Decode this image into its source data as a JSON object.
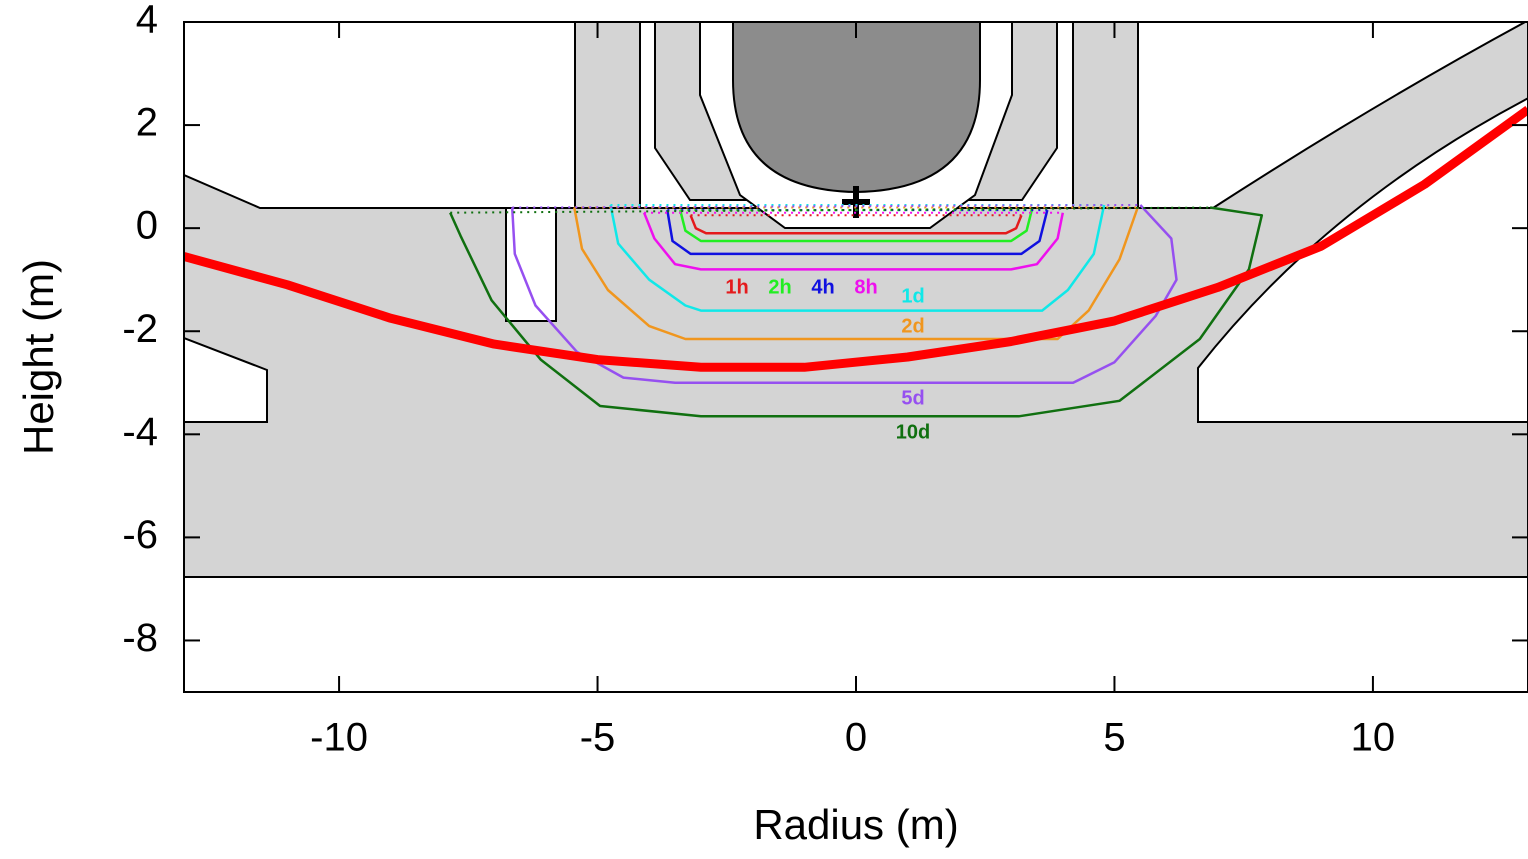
{
  "chart_data": {
    "type": "line",
    "xlabel": "Radius (m)",
    "ylabel": "Height (m)",
    "xlim": [
      -13,
      13
    ],
    "xticks": [
      -10,
      -5,
      0,
      5,
      10
    ],
    "ylim": [
      -9,
      4
    ],
    "yticks": [
      4,
      2,
      0,
      -2,
      -4,
      -6,
      -8
    ],
    "series": [
      {
        "name": "1h",
        "color": "#e41a1c",
        "x": [
          -3.2,
          -3.1,
          -2.9,
          2.9,
          3.1,
          3.2
        ],
        "values": [
          0.25,
          0.0,
          -0.1,
          -0.1,
          0.0,
          0.25
        ]
      },
      {
        "name": "2h",
        "color": "#22ee22",
        "x": [
          -3.4,
          -3.3,
          -3.0,
          3.0,
          3.3,
          3.4
        ],
        "values": [
          0.35,
          -0.05,
          -0.25,
          -0.25,
          -0.05,
          0.35
        ]
      },
      {
        "name": "4h",
        "color": "#1010e0",
        "x": [
          -3.65,
          -3.55,
          -3.2,
          3.2,
          3.55,
          3.7
        ],
        "values": [
          0.35,
          -0.25,
          -0.5,
          -0.5,
          -0.25,
          0.35
        ]
      },
      {
        "name": "8h",
        "color": "#ee10ee",
        "x": [
          -4.1,
          -3.9,
          -3.5,
          -3.0,
          3.0,
          3.5,
          3.9,
          4.0
        ],
        "values": [
          0.3,
          -0.2,
          -0.7,
          -0.8,
          -0.8,
          -0.7,
          -0.2,
          0.3
        ]
      },
      {
        "name": "1d",
        "color": "#10e8e8",
        "x": [
          -4.75,
          -4.6,
          -4.0,
          -3.3,
          -3.0,
          3.6,
          4.1,
          4.6,
          4.8
        ],
        "values": [
          0.45,
          -0.3,
          -1.0,
          -1.5,
          -1.6,
          -1.6,
          -1.2,
          -0.5,
          0.45
        ]
      },
      {
        "name": "2d",
        "color": "#f0961e",
        "x": [
          -5.45,
          -5.3,
          -4.8,
          -4.0,
          -3.3,
          3.9,
          4.5,
          5.1,
          5.45
        ],
        "values": [
          0.4,
          -0.4,
          -1.2,
          -1.9,
          -2.15,
          -2.15,
          -1.6,
          -0.6,
          0.4
        ]
      },
      {
        "name": "5d",
        "color": "#9650f0",
        "x": [
          -6.65,
          -6.6,
          -6.2,
          -5.4,
          -4.5,
          -3.5,
          4.2,
          5.0,
          5.8,
          6.2,
          6.1,
          5.5
        ],
        "values": [
          0.4,
          -0.5,
          -1.5,
          -2.4,
          -2.9,
          -3.0,
          -3.0,
          -2.6,
          -1.7,
          -1.0,
          -0.2,
          0.45
        ]
      },
      {
        "name": "10d",
        "color": "#107010",
        "x": [
          -7.85,
          -7.65,
          -7.05,
          -6.1,
          -4.95,
          -3.0,
          3.15,
          5.1,
          6.65,
          7.6,
          7.85,
          6.85
        ],
        "values": [
          0.3,
          -0.15,
          -1.4,
          -2.55,
          -3.45,
          -3.65,
          -3.65,
          -3.35,
          -2.15,
          -0.8,
          0.25,
          0.4
        ]
      },
      {
        "color": "#ff0000",
        "x": [
          -13,
          -11,
          -9,
          -7,
          -5,
          -3,
          -1,
          1,
          3,
          5,
          7,
          9,
          11,
          13
        ],
        "values": [
          -0.55,
          -1.1,
          -1.75,
          -2.25,
          -2.55,
          -2.7,
          -2.7,
          -2.5,
          -2.2,
          -1.8,
          -1.15,
          -0.35,
          0.85,
          2.3
        ]
      }
    ]
  }
}
